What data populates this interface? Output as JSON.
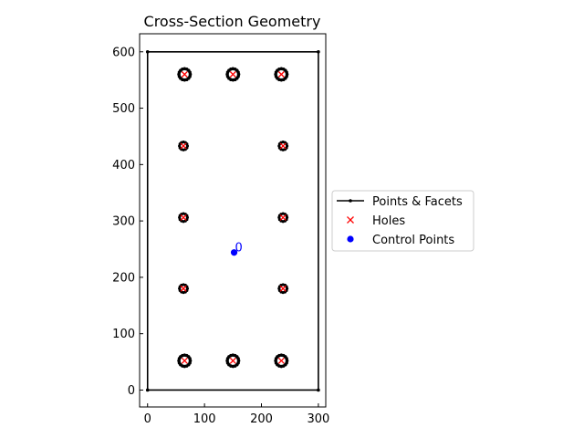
{
  "chart_data": {
    "type": "scatter",
    "title": "Cross-Section Geometry",
    "xlabel": "",
    "ylabel": "",
    "xlim": [
      -14,
      313
    ],
    "ylim": [
      -30,
      632
    ],
    "x_ticks": [
      0,
      100,
      200,
      300
    ],
    "y_ticks": [
      0,
      100,
      200,
      300,
      400,
      500,
      600
    ],
    "grid": false,
    "aspect": "equal",
    "legend": {
      "placement": "center-right outside",
      "entries": [
        {
          "label": "Points & Facets",
          "marker": "line-with-dots",
          "color": "#000000"
        },
        {
          "label": "Holes",
          "marker": "x",
          "color": "#ff0000"
        },
        {
          "label": "Control Points",
          "marker": "circle",
          "color": "#0000ff"
        }
      ]
    },
    "outer_boundary": {
      "points": [
        [
          0,
          0
        ],
        [
          300,
          0
        ],
        [
          300,
          600
        ],
        [
          0,
          600
        ]
      ],
      "color": "#000000"
    },
    "large_holes": {
      "radius": 10,
      "centers": [
        [
          65,
          560
        ],
        [
          150,
          560
        ],
        [
          235,
          560
        ],
        [
          65,
          52
        ],
        [
          150,
          52
        ],
        [
          235,
          52
        ]
      ]
    },
    "small_holes": {
      "radius": 7,
      "centers": [
        [
          63,
          433
        ],
        [
          238,
          433
        ],
        [
          63,
          306
        ],
        [
          238,
          306
        ],
        [
          63,
          180
        ],
        [
          238,
          180
        ]
      ]
    },
    "control_points": [
      {
        "x": 152,
        "y": 244,
        "label": "0"
      }
    ],
    "colors": {
      "facets": "#000000",
      "holes": "#ff0000",
      "control": "#0000ff"
    }
  }
}
